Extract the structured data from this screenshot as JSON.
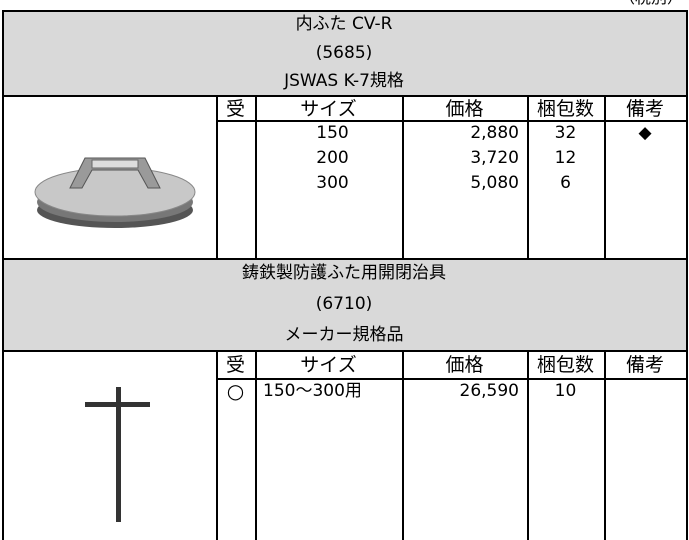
{
  "note": "（税別）",
  "sections": [
    {
      "title_lines": [
        "内ふた CV-R",
        "(5685)",
        "JSWAS K-7規格"
      ],
      "columns": [
        "受",
        "サイズ",
        "価格",
        "梱包数",
        "備考"
      ],
      "rows": [
        {
          "size": "150",
          "price": "2,880",
          "qty": "32",
          "remarks": "◆"
        },
        {
          "size": "200",
          "price": "3,720",
          "qty": "12"
        },
        {
          "size": "300",
          "price": "5,080",
          "qty": "6"
        }
      ]
    },
    {
      "title_lines": [
        "鋳鉄製防護ふた用開閉治具",
        "(6710)",
        "メーカー規格品"
      ],
      "columns": [
        "受",
        "サイズ",
        "価格",
        "梱包数",
        "備考"
      ],
      "rows": [
        {
          "receive": "○",
          "size": "150〜300用",
          "price": "26,590",
          "qty": "10"
        }
      ]
    }
  ]
}
